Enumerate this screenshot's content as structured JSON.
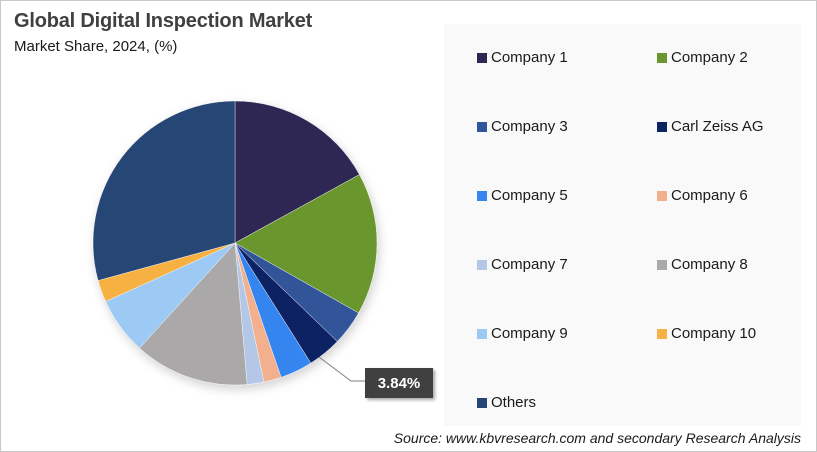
{
  "header": {
    "title": "Global Digital Inspection Market",
    "subtitle": "Market Share, 2024, (%)"
  },
  "callout": {
    "label": "3.84%",
    "target": "Carl Zeiss AG"
  },
  "source": "Source: www.kbvresearch.com and secondary Research Analysis",
  "legend": [
    {
      "label": "Company 1",
      "color": "#2e2552"
    },
    {
      "label": "Company 2",
      "color": "#6b962e"
    },
    {
      "label": "Company 3",
      "color": "#30559a"
    },
    {
      "label": "Carl Zeiss AG",
      "color": "#0c2462"
    },
    {
      "label": "Company 5",
      "color": "#3685f0"
    },
    {
      "label": "Company 6",
      "color": "#f2b08e"
    },
    {
      "label": "Company 7",
      "color": "#b4c7e6"
    },
    {
      "label": "Company 8",
      "color": "#aaa8a8"
    },
    {
      "label": "Company 9",
      "color": "#9dcaf5"
    },
    {
      "label": "Company 10",
      "color": "#f6b143"
    },
    {
      "label": "Others",
      "color": "#264675"
    }
  ],
  "chart_data": {
    "type": "pie",
    "title": "Global Digital Inspection Market",
    "subtitle": "Market Share, 2024, (%)",
    "categories": [
      "Company 1",
      "Company 2",
      "Company 3",
      "Carl Zeiss AG",
      "Company 5",
      "Company 6",
      "Company 7",
      "Company 8",
      "Company 9",
      "Company 10",
      "Others"
    ],
    "values": [
      17.0,
      16.2,
      4.0,
      3.84,
      3.7,
      2.0,
      1.9,
      13.1,
      6.5,
      2.5,
      29.26
    ],
    "colors": [
      "#2e2552",
      "#6b962e",
      "#30559a",
      "#0c2462",
      "#3685f0",
      "#f2b08e",
      "#b4c7e6",
      "#aaa8a8",
      "#9dcaf5",
      "#f6b143",
      "#264675"
    ],
    "start_angle_deg": 0,
    "direction": "clockwise",
    "data_labels": [
      {
        "category": "Carl Zeiss AG",
        "label": "3.84%"
      }
    ],
    "legend_position": "right",
    "source": "Source: www.kbvresearch.com and secondary Research Analysis"
  }
}
